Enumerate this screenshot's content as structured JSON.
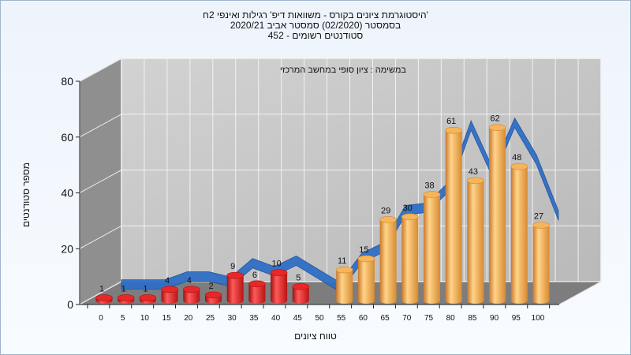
{
  "chart_data": {
    "type": "bar",
    "title_lines": [
      "היסטוגרמת ציונים בקורס - משוואות דיפ' רגילות ואינפי 2ח'",
      "בסמסטר (02/2020) סמסטר אביב 2020/21",
      "452 - סטודנטים רשומים"
    ],
    "annotation": "במשימה : ציון סופי במחשב המרכזי",
    "xlabel": "טווח ציונים",
    "ylabel": "מספר סטודנטים",
    "ylim": [
      0,
      80
    ],
    "yticks": [
      0,
      20,
      40,
      60,
      80
    ],
    "categories": [
      "0",
      "5",
      "10",
      "15",
      "20",
      "25",
      "30",
      "35",
      "40",
      "45",
      "50",
      "55",
      "60",
      "65",
      "70",
      "75",
      "80",
      "85",
      "90",
      "95",
      "100"
    ],
    "values": [
      1,
      1,
      1,
      4,
      4,
      2,
      9,
      6,
      10,
      5,
      null,
      11,
      15,
      29,
      30,
      38,
      61,
      43,
      62,
      48,
      27
    ],
    "bar_colors": {
      "fail": "#e01c1c",
      "pass": "#f0a53c"
    },
    "pass_threshold": 55,
    "trend_color": "#2f6fc6",
    "grid": true
  }
}
